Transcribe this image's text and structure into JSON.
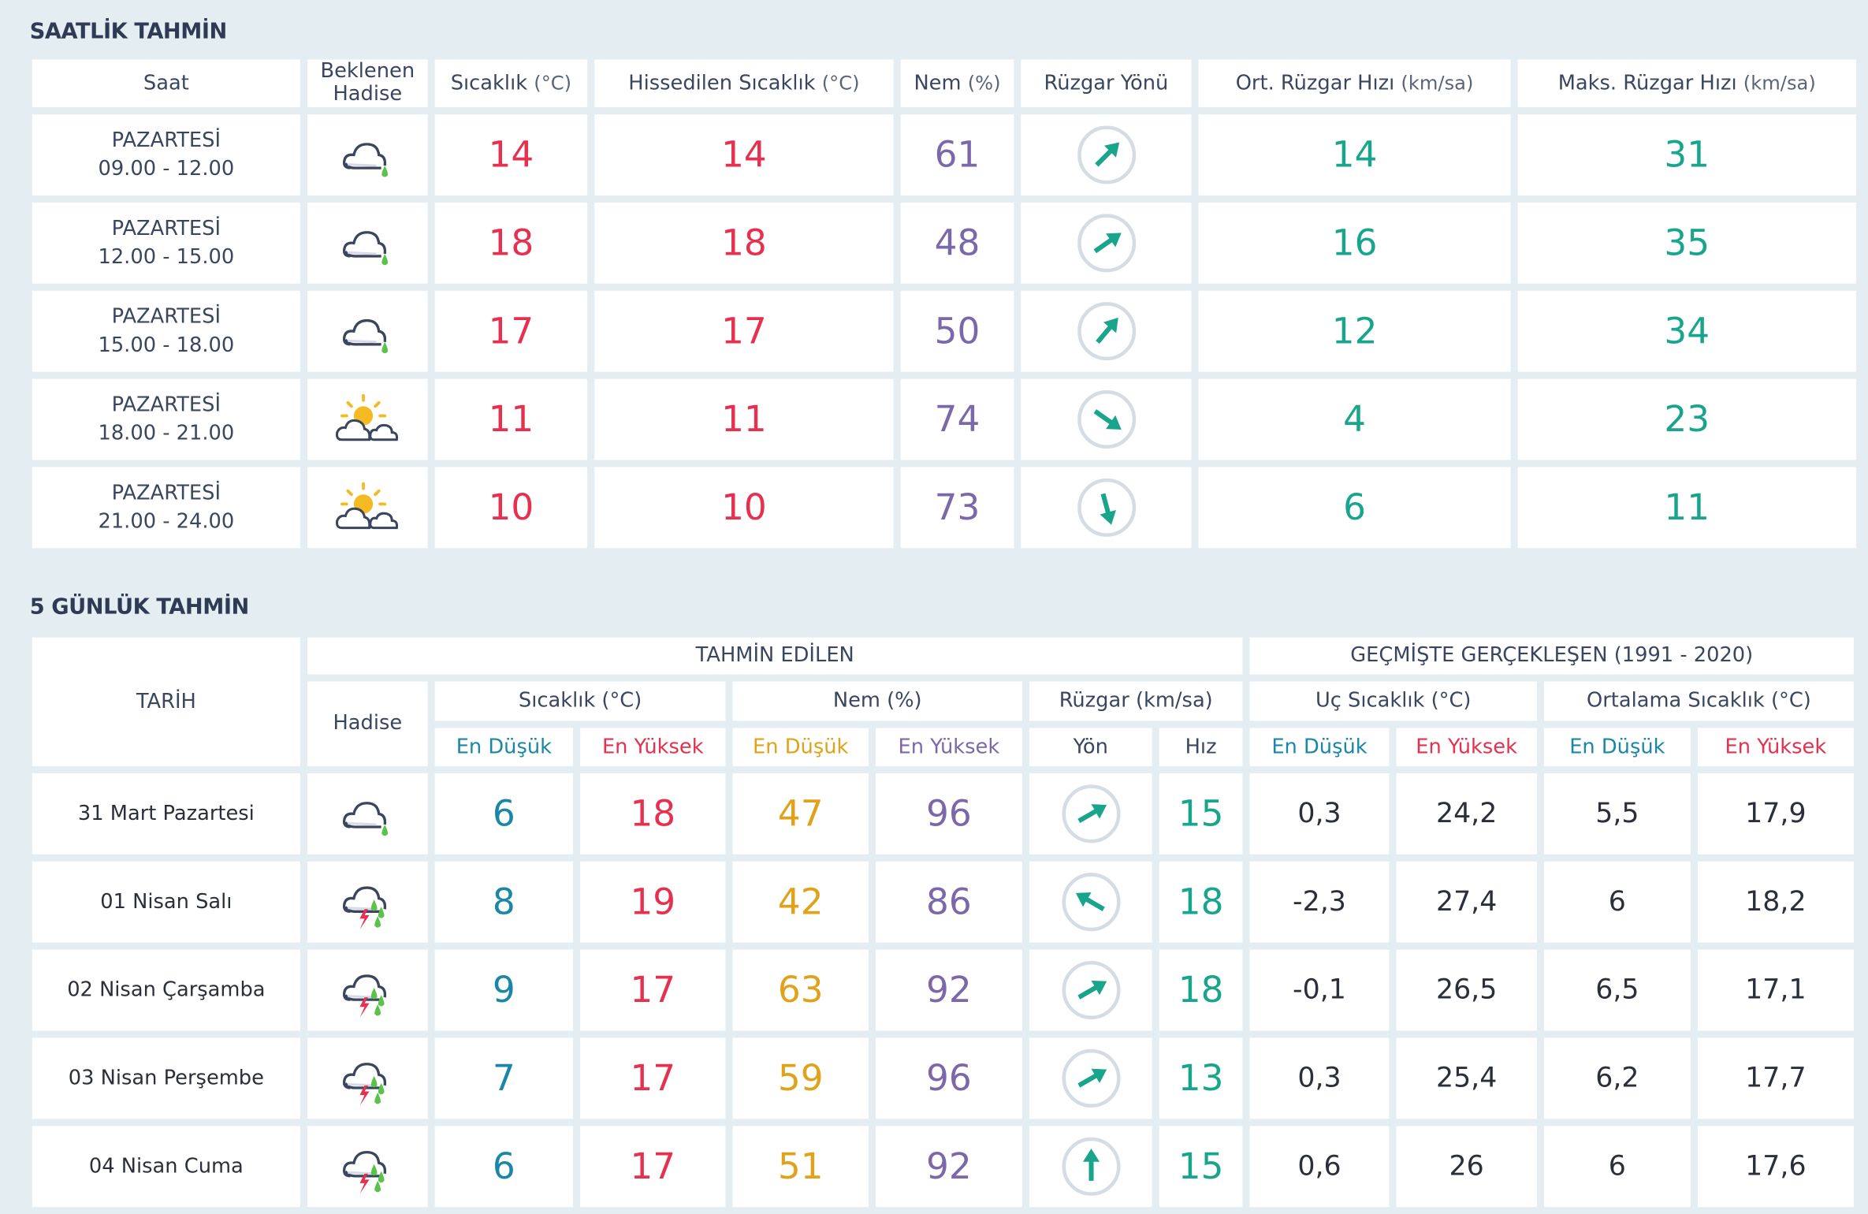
{
  "colors": {
    "temp": "#e5304f",
    "humidity": "#7b68aa",
    "wind": "#19a58c",
    "min": "#1a86a8",
    "hum_min": "#e0a21a",
    "text": "#2f3b55"
  },
  "hourly": {
    "title": "SAATLİK TAHMİN",
    "headers": {
      "saat": "Saat",
      "hadise": "Beklenen Hadise",
      "sicaklik": "Sıcaklık",
      "sicaklik_unit": "(°C)",
      "hissedilen": "Hissedilen Sıcaklık",
      "hissedilen_unit": "(°C)",
      "nem": "Nem",
      "nem_unit": "(%)",
      "yon": "Rüzgar Yönü",
      "ort": "Ort. Rüzgar Hızı",
      "ort_unit": "(km/sa)",
      "maks": "Maks. Rüzgar Hızı",
      "maks_unit": "(km/sa)"
    },
    "rows": [
      {
        "day": "PAZARTESİ",
        "time": "09.00 - 12.00",
        "icon": "cloud-rain",
        "temp": "14",
        "feels": "14",
        "hum": "61",
        "wind_deg": 45,
        "avg": "14",
        "max": "31"
      },
      {
        "day": "PAZARTESİ",
        "time": "12.00 - 15.00",
        "icon": "cloud-rain",
        "temp": "18",
        "feels": "18",
        "hum": "48",
        "wind_deg": 55,
        "avg": "16",
        "max": "35"
      },
      {
        "day": "PAZARTESİ",
        "time": "15.00 - 18.00",
        "icon": "cloud-rain",
        "temp": "17",
        "feels": "17",
        "hum": "50",
        "wind_deg": 40,
        "avg": "12",
        "max": "34"
      },
      {
        "day": "PAZARTESİ",
        "time": "18.00 - 21.00",
        "icon": "sun-cloud",
        "temp": "11",
        "feels": "11",
        "hum": "74",
        "wind_deg": 125,
        "avg": "4",
        "max": "23"
      },
      {
        "day": "PAZARTESİ",
        "time": "21.00 - 24.00",
        "icon": "sun-cloud",
        "temp": "10",
        "feels": "10",
        "hum": "73",
        "wind_deg": 165,
        "avg": "6",
        "max": "11"
      }
    ]
  },
  "daily": {
    "title": "5 GÜNLÜK TAHMİN",
    "headers": {
      "tarih": "TARİH",
      "tahmin": "TAHMİN EDİLEN",
      "gecmis": "GEÇMİŞTE GERÇEKLEŞEN (1991 - 2020)",
      "hadise": "Hadise",
      "sicaklik": "Sıcaklık (°C)",
      "nem": "Nem (%)",
      "ruzgar": "Rüzgar (km/sa)",
      "uc": "Uç Sıcaklık (°C)",
      "ortalama": "Ortalama Sıcaklık (°C)",
      "en_dusuk": "En Düşük",
      "en_yuksek": "En Yüksek",
      "yon": "Yön",
      "hiz": "Hız"
    },
    "rows": [
      {
        "date": "31 Mart Pazartesi",
        "icon": "cloud-rain",
        "tmin": "6",
        "tmax": "18",
        "hmin": "47",
        "hmax": "96",
        "wind_deg": 60,
        "speed": "15",
        "uc_min": "0,3",
        "uc_max": "24,2",
        "ort_min": "5,5",
        "ort_max": "17,9"
      },
      {
        "date": "01 Nisan Salı",
        "icon": "thunder-rain",
        "tmin": "8",
        "tmax": "19",
        "hmin": "42",
        "hmax": "86",
        "wind_deg": 300,
        "speed": "18",
        "uc_min": "-2,3",
        "uc_max": "27,4",
        "ort_min": "6",
        "ort_max": "18,2"
      },
      {
        "date": "02 Nisan Çarşamba",
        "icon": "thunder-rain",
        "tmin": "9",
        "tmax": "17",
        "hmin": "63",
        "hmax": "92",
        "wind_deg": 60,
        "speed": "18",
        "uc_min": "-0,1",
        "uc_max": "26,5",
        "ort_min": "6,5",
        "ort_max": "17,1"
      },
      {
        "date": "03 Nisan Perşembe",
        "icon": "thunder-rain",
        "tmin": "7",
        "tmax": "17",
        "hmin": "59",
        "hmax": "96",
        "wind_deg": 60,
        "speed": "13",
        "uc_min": "0,3",
        "uc_max": "25,4",
        "ort_min": "6,2",
        "ort_max": "17,7"
      },
      {
        "date": "04 Nisan Cuma",
        "icon": "thunder-rain",
        "tmin": "6",
        "tmax": "17",
        "hmin": "51",
        "hmax": "92",
        "wind_deg": 0,
        "speed": "15",
        "uc_min": "0,6",
        "uc_max": "26",
        "ort_min": "6",
        "ort_max": "17,6"
      }
    ]
  }
}
